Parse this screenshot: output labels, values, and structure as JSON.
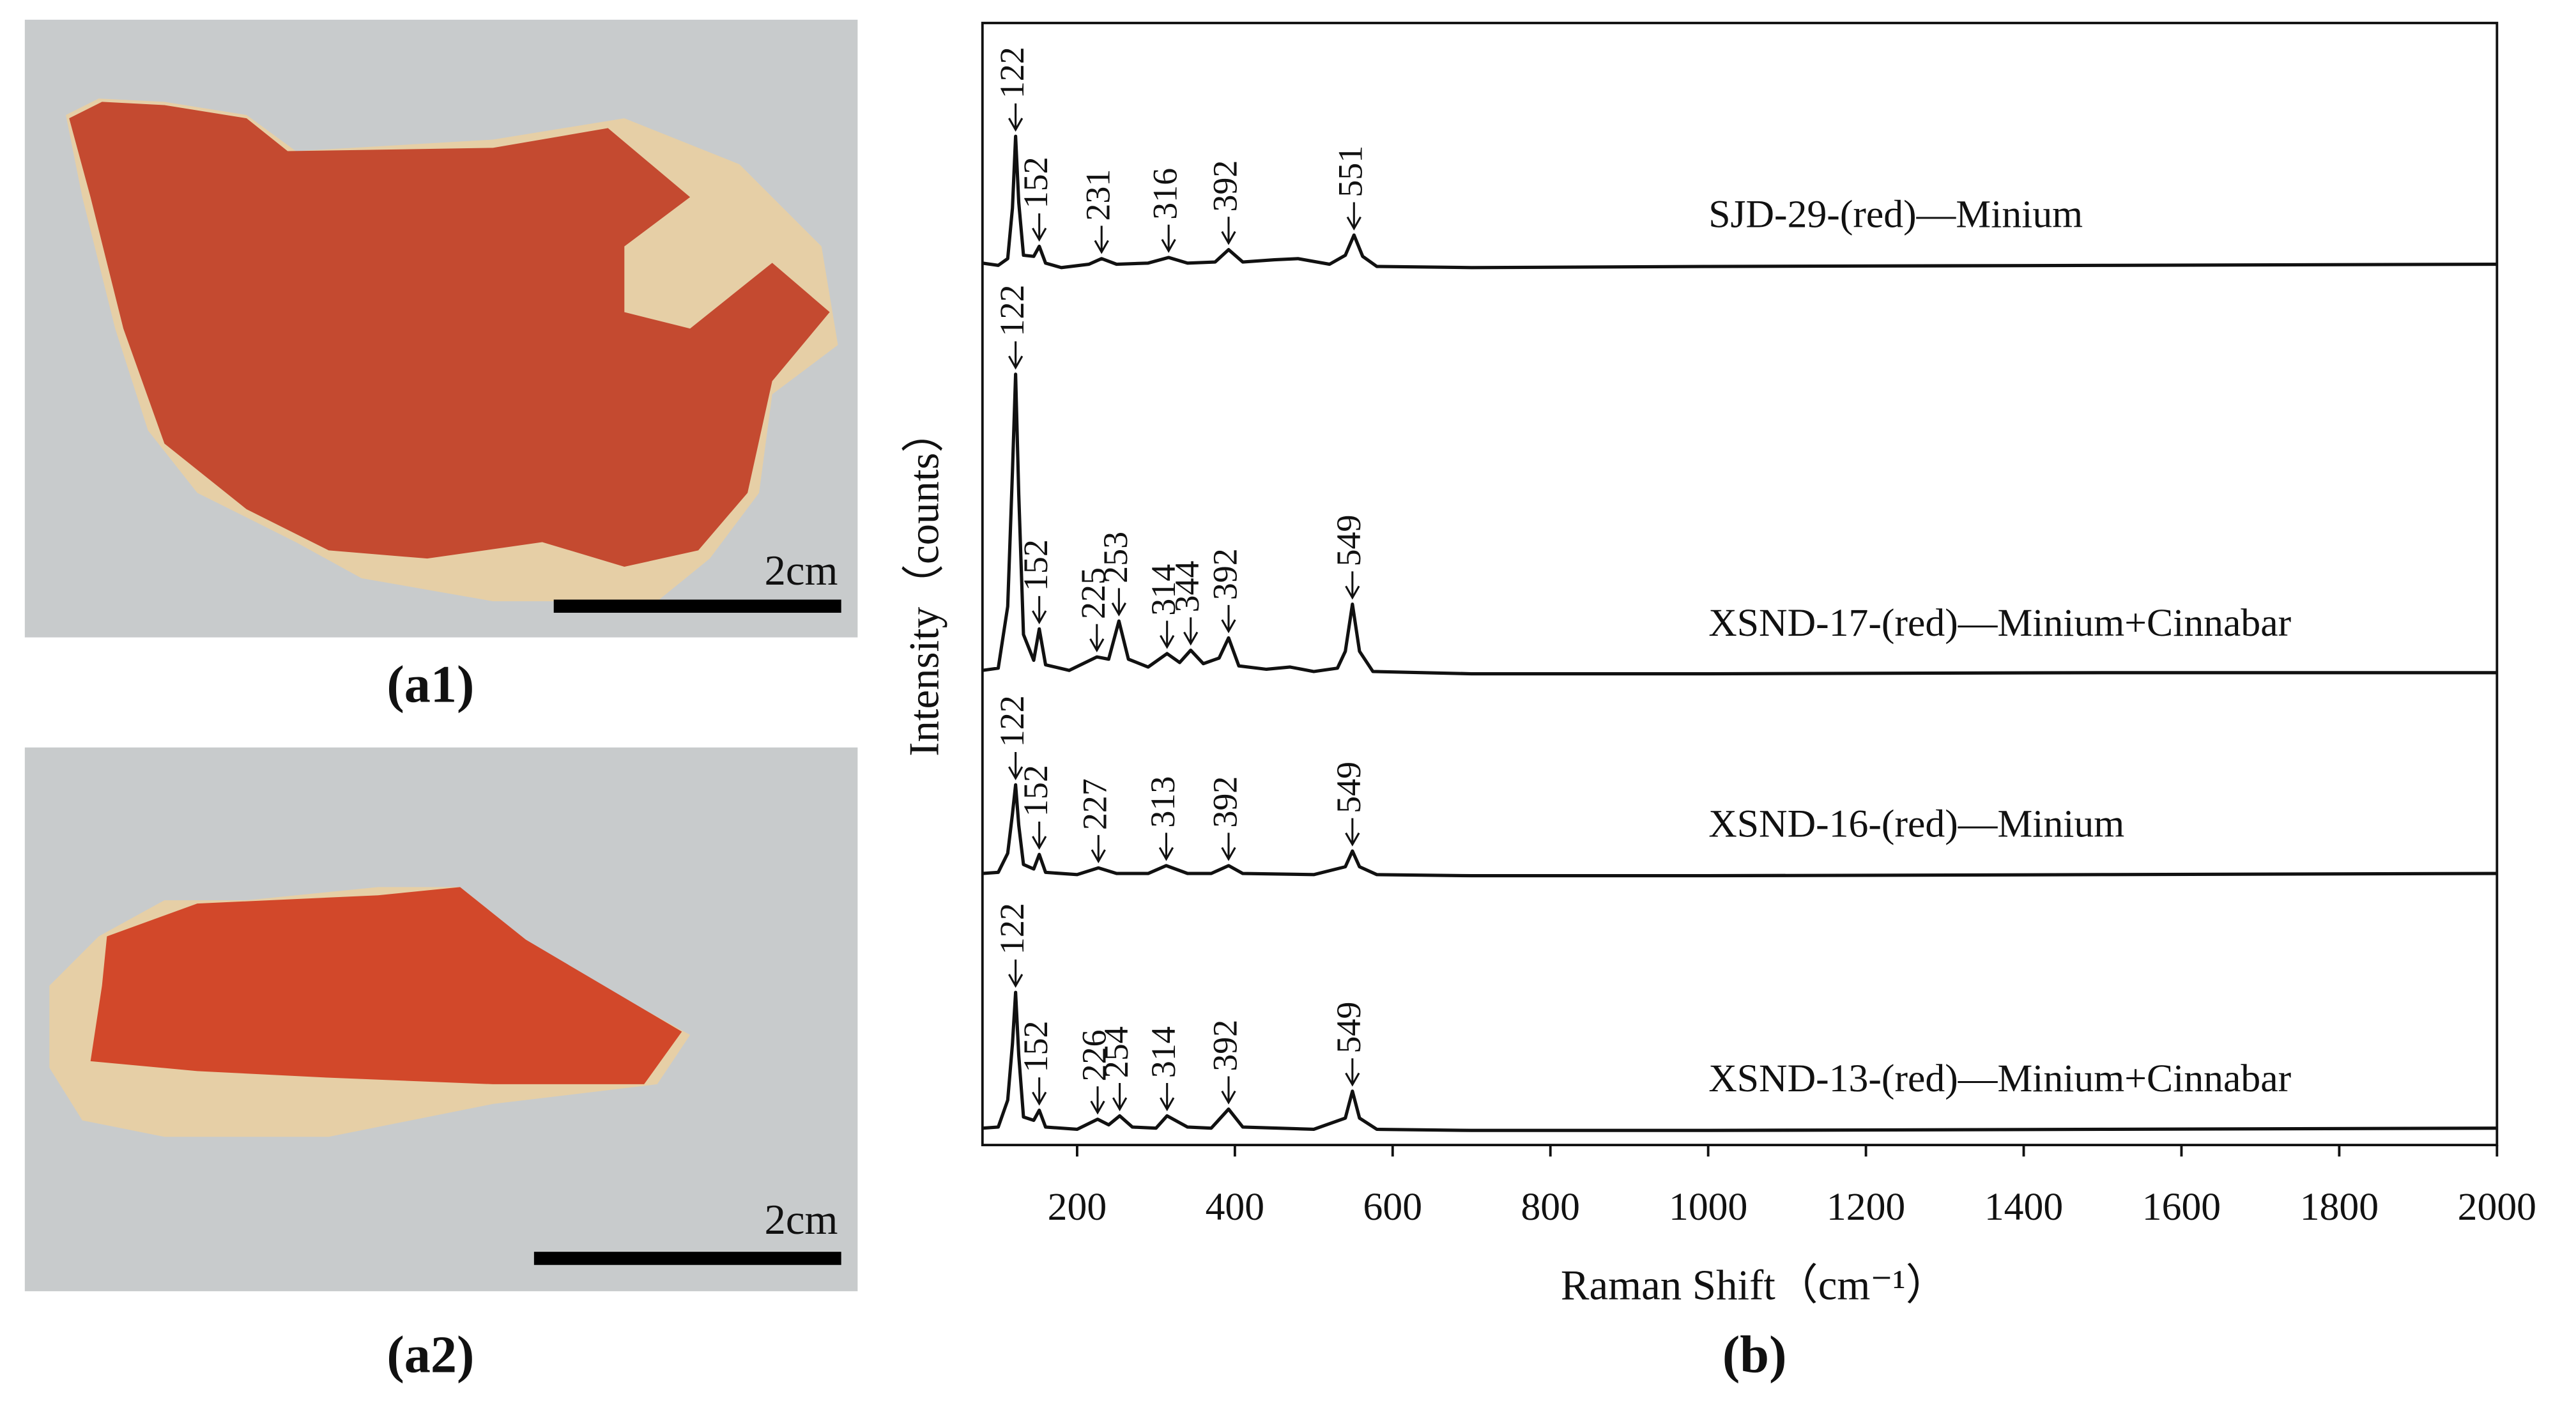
{
  "panels": [
    {
      "label": "(a1)",
      "scale_bar": "2cm"
    },
    {
      "label": "(a2)",
      "scale_bar": "2cm"
    }
  ],
  "chart_data": {
    "type": "line",
    "panel_label": "(b)",
    "x_label": "Raman Shift（cm⁻¹）",
    "y_label": "Intensity（counts）",
    "xlim": [
      80,
      2000
    ],
    "xticks": [
      200,
      400,
      600,
      800,
      1000,
      1200,
      1400,
      1600,
      1800,
      2000
    ],
    "ylim": [
      0,
      100
    ],
    "grid": false,
    "series": [
      {
        "name": "SJD-29-(red)—Minium",
        "color": "#111111",
        "x": [
          80,
          100,
          112,
          118,
          122,
          126,
          132,
          145,
          152,
          160,
          180,
          215,
          231,
          250,
          290,
          316,
          340,
          375,
          392,
          410,
          450,
          480,
          520,
          540,
          551,
          562,
          580,
          700,
          1000,
          1500,
          2000
        ],
        "values": [
          78.6,
          78.4,
          79.0,
          83.5,
          89.9,
          84.0,
          79.3,
          79.2,
          80.1,
          78.6,
          78.2,
          78.5,
          79.0,
          78.5,
          78.6,
          79.1,
          78.6,
          78.7,
          79.8,
          78.7,
          78.9,
          79.0,
          78.5,
          79.3,
          81.1,
          79.2,
          78.3,
          78.2,
          78.3,
          78.4,
          78.5
        ],
        "peaks": [
          122,
          152,
          231,
          316,
          392,
          551
        ]
      },
      {
        "name": "XSND-17-(red)—Minium+Cinnabar",
        "color": "#111111",
        "x": [
          80,
          100,
          112,
          118,
          122,
          126,
          132,
          145,
          152,
          160,
          190,
          225,
          240,
          253,
          265,
          290,
          314,
          330,
          344,
          360,
          380,
          392,
          405,
          440,
          470,
          500,
          530,
          540,
          549,
          558,
          575,
          700,
          1000,
          1500,
          2000
        ],
        "values": [
          42.3,
          42.5,
          48,
          60,
          68.7,
          58,
          45.5,
          43.2,
          46,
          42.8,
          42.3,
          43.5,
          43.3,
          46.7,
          43.3,
          42.6,
          43.8,
          43.0,
          44.1,
          42.9,
          43.4,
          45.2,
          42.7,
          42.4,
          42.6,
          42.2,
          42.5,
          44,
          48.2,
          44,
          42.2,
          42.0,
          42.0,
          42.1,
          42.1
        ],
        "peaks": [
          122,
          152,
          225,
          253,
          314,
          344,
          392,
          549
        ]
      },
      {
        "name": "XSND-16-(red)—Minium",
        "color": "#111111",
        "x": [
          80,
          100,
          112,
          118,
          122,
          126,
          132,
          145,
          152,
          160,
          200,
          227,
          250,
          290,
          313,
          340,
          370,
          392,
          410,
          500,
          540,
          549,
          558,
          580,
          700,
          1000,
          1500,
          2000
        ],
        "values": [
          24.2,
          24.3,
          26,
          29.5,
          32.1,
          28.5,
          25,
          24.6,
          25.9,
          24.3,
          24.1,
          24.7,
          24.2,
          24.2,
          24.9,
          24.2,
          24.2,
          24.9,
          24.2,
          24.1,
          24.8,
          26.2,
          24.8,
          24.1,
          24.0,
          24.0,
          24.1,
          24.2
        ],
        "peaks": [
          122,
          152,
          227,
          313,
          392,
          549
        ]
      },
      {
        "name": "XSND-13-(red)—Minium+Cinnabar",
        "color": "#111111",
        "x": [
          80,
          100,
          112,
          118,
          122,
          126,
          132,
          145,
          152,
          160,
          200,
          226,
          240,
          254,
          270,
          300,
          314,
          340,
          370,
          392,
          410,
          500,
          540,
          549,
          558,
          580,
          700,
          1000,
          1500,
          2000
        ],
        "values": [
          1.5,
          1.6,
          4,
          9,
          13.6,
          8,
          2.5,
          2.2,
          3.1,
          1.6,
          1.4,
          2.3,
          1.8,
          2.6,
          1.6,
          1.5,
          2.6,
          1.6,
          1.5,
          3.2,
          1.6,
          1.4,
          2.4,
          4.8,
          2.4,
          1.4,
          1.3,
          1.3,
          1.4,
          1.5
        ],
        "peaks": [
          122,
          152,
          226,
          254,
          314,
          392,
          549
        ]
      }
    ]
  }
}
